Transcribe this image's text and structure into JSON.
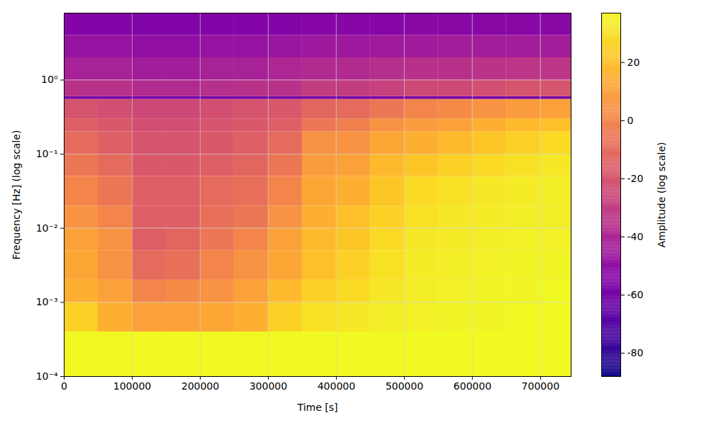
{
  "chart_data": {
    "type": "heatmap",
    "xlabel": "Time [s]",
    "ylabel": "Frequency [Hz] (log scale)",
    "colorbar_label": "Amplitude (log scale)",
    "color": "plasma",
    "log": "y",
    "grid": true,
    "xlim": [
      0,
      745000
    ],
    "ylim": [
      0.0001,
      8
    ],
    "xticks": [
      0,
      100000,
      200000,
      300000,
      400000,
      500000,
      600000,
      700000
    ],
    "yticks": [
      {
        "value": 0.0001,
        "label": "10⁻⁴"
      },
      {
        "value": 0.001,
        "label": "10⁻³"
      },
      {
        "value": 0.01,
        "label": "10⁻²"
      },
      {
        "value": 0.1,
        "label": "10⁻¹"
      },
      {
        "value": 1,
        "label": "10⁰"
      }
    ],
    "zlim": [
      -88,
      37
    ],
    "zticks": [
      -80,
      -60,
      -40,
      -20,
      0,
      20
    ],
    "x_bins": [
      0,
      50000,
      100000,
      150000,
      200000,
      250000,
      300000,
      350000,
      400000,
      450000,
      500000,
      550000,
      600000,
      650000,
      700000,
      745000
    ],
    "y_bins": [
      0.0001,
      0.0004,
      0.001,
      0.002,
      0.005,
      0.01,
      0.02,
      0.05,
      0.1,
      0.2,
      0.3,
      0.55,
      0.6,
      1,
      2,
      4,
      8
    ],
    "values": [
      [
        37,
        37,
        37,
        37,
        37,
        37,
        37,
        37,
        37,
        37,
        37,
        37,
        37,
        37,
        37
      ],
      [
        25,
        15,
        10,
        10,
        12,
        15,
        25,
        30,
        32,
        34,
        35,
        36,
        36,
        37,
        37
      ],
      [
        15,
        10,
        0,
        2,
        5,
        10,
        18,
        25,
        28,
        32,
        34,
        35,
        36,
        36,
        37
      ],
      [
        12,
        5,
        -10,
        -8,
        0,
        5,
        12,
        20,
        25,
        30,
        33,
        34,
        35,
        36,
        36
      ],
      [
        10,
        5,
        -15,
        -12,
        -5,
        0,
        10,
        18,
        22,
        28,
        32,
        33,
        34,
        35,
        35
      ],
      [
        5,
        0,
        -15,
        -15,
        -8,
        -5,
        5,
        15,
        20,
        25,
        30,
        32,
        33,
        34,
        34
      ],
      [
        0,
        -5,
        -15,
        -15,
        -10,
        -8,
        0,
        12,
        15,
        22,
        28,
        30,
        32,
        33,
        34
      ],
      [
        -5,
        -10,
        -18,
        -18,
        -15,
        -12,
        -5,
        8,
        10,
        18,
        22,
        25,
        28,
        30,
        32
      ],
      [
        -10,
        -15,
        -20,
        -20,
        -18,
        -15,
        -10,
        5,
        5,
        12,
        15,
        18,
        22,
        25,
        28
      ],
      [
        -15,
        -18,
        -22,
        -22,
        -20,
        -18,
        -15,
        -5,
        -2,
        5,
        8,
        10,
        15,
        18,
        20
      ],
      [
        -20,
        -22,
        -25,
        -25,
        -22,
        -20,
        -18,
        -12,
        -10,
        -5,
        0,
        2,
        5,
        8,
        10
      ],
      [
        -60,
        -60,
        -60,
        -60,
        -60,
        -60,
        -60,
        -60,
        -60,
        -60,
        -60,
        -60,
        -60,
        -60,
        -60
      ],
      [
        -35,
        -35,
        -38,
        -38,
        -36,
        -35,
        -35,
        -30,
        -30,
        -28,
        -25,
        -25,
        -22,
        -20,
        -20
      ],
      [
        -42,
        -42,
        -44,
        -44,
        -42,
        -42,
        -40,
        -38,
        -38,
        -36,
        -35,
        -35,
        -34,
        -33,
        -33
      ],
      [
        -48,
        -48,
        -50,
        -50,
        -48,
        -48,
        -47,
        -46,
        -46,
        -45,
        -45,
        -44,
        -44,
        -44,
        -44
      ],
      [
        -55,
        -55,
        -56,
        -56,
        -55,
        -55,
        -55,
        -54,
        -54,
        -54,
        -53,
        -53,
        -53,
        -53,
        -53
      ]
    ]
  }
}
